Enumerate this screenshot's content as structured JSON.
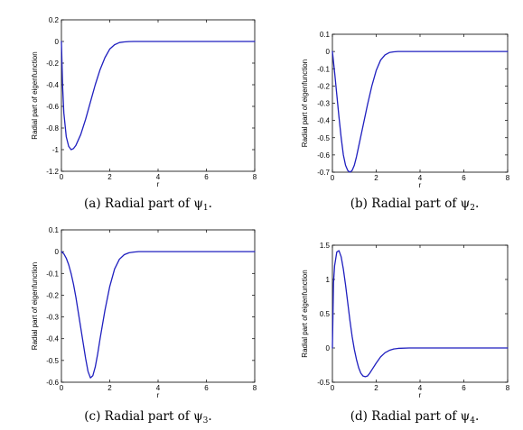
{
  "chart_data": [
    {
      "type": "line",
      "xlabel": "r",
      "ylabel": "Radial part of eigenfunction",
      "xlim": [
        0,
        8
      ],
      "ylim": [
        -1.2,
        0.2
      ],
      "xticks": [
        "0",
        "2",
        "4",
        "6",
        "8"
      ],
      "yticks": [
        "0.2",
        "0",
        "-0.2",
        "-0.4",
        "-0.6",
        "-0.8",
        "-1",
        "-1.2"
      ],
      "caption": {
        "prefix": "(a) Radial part of ψ",
        "sub": "1",
        "suffix": "."
      },
      "line_color": "#1f1fbf",
      "x": [
        0,
        0.05,
        0.1,
        0.2,
        0.3,
        0.4,
        0.5,
        0.6,
        0.8,
        1.0,
        1.2,
        1.4,
        1.6,
        1.8,
        2.0,
        2.2,
        2.4,
        2.6,
        2.8,
        3.0,
        4.0,
        5.0,
        6.0,
        7.0,
        8.0
      ],
      "y": [
        0,
        -0.42,
        -0.66,
        -0.88,
        -0.97,
        -1.0,
        -0.99,
        -0.96,
        -0.86,
        -0.72,
        -0.56,
        -0.4,
        -0.26,
        -0.15,
        -0.07,
        -0.03,
        -0.01,
        -0.004,
        -0.001,
        0,
        0,
        0,
        0,
        0,
        0
      ]
    },
    {
      "type": "line",
      "xlabel": "r",
      "ylabel": "Radial part of eigenfunction",
      "xlim": [
        0,
        8
      ],
      "ylim": [
        -0.7,
        0.1
      ],
      "xticks": [
        "0",
        "2",
        "4",
        "6",
        "8"
      ],
      "yticks": [
        "0.1",
        "0",
        "-0.1",
        "-0.2",
        "-0.3",
        "-0.4",
        "-0.5",
        "-0.6",
        "-0.7"
      ],
      "caption": {
        "prefix": "(b) Radial part of ψ",
        "sub": "2",
        "suffix": "."
      },
      "line_color": "#1f1fbf",
      "x": [
        0,
        0.1,
        0.2,
        0.3,
        0.4,
        0.5,
        0.6,
        0.7,
        0.8,
        0.9,
        1.0,
        1.1,
        1.2,
        1.4,
        1.6,
        1.8,
        2.0,
        2.2,
        2.4,
        2.6,
        2.8,
        3.0,
        4.0,
        5.0,
        6.0,
        7.0,
        8.0
      ],
      "y": [
        0,
        -0.12,
        -0.25,
        -0.38,
        -0.5,
        -0.6,
        -0.66,
        -0.69,
        -0.7,
        -0.69,
        -0.66,
        -0.61,
        -0.55,
        -0.43,
        -0.31,
        -0.2,
        -0.11,
        -0.05,
        -0.02,
        -0.006,
        -0.002,
        0,
        0,
        0,
        0,
        0,
        0
      ]
    },
    {
      "type": "line",
      "xlabel": "r",
      "ylabel": "Radial part of eigenfunction",
      "xlim": [
        0,
        8
      ],
      "ylim": [
        -0.6,
        0.1
      ],
      "xticks": [
        "0",
        "2",
        "4",
        "6",
        "8"
      ],
      "yticks": [
        "0.1",
        "0",
        "-0.1",
        "-0.2",
        "-0.3",
        "-0.4",
        "-0.5",
        "-0.6"
      ],
      "caption": {
        "prefix": "(c) Radial part of ψ",
        "sub": "3",
        "suffix": "."
      },
      "line_color": "#1f1fbf",
      "x": [
        0,
        0.1,
        0.2,
        0.3,
        0.4,
        0.5,
        0.6,
        0.7,
        0.8,
        0.9,
        1.0,
        1.1,
        1.2,
        1.3,
        1.4,
        1.5,
        1.6,
        1.8,
        2.0,
        2.2,
        2.4,
        2.6,
        2.8,
        3.0,
        3.2,
        4.0,
        5.0,
        6.0,
        7.0,
        8.0
      ],
      "y": [
        0,
        -0.01,
        -0.03,
        -0.06,
        -0.1,
        -0.15,
        -0.21,
        -0.28,
        -0.35,
        -0.42,
        -0.49,
        -0.55,
        -0.58,
        -0.57,
        -0.53,
        -0.47,
        -0.4,
        -0.27,
        -0.16,
        -0.08,
        -0.035,
        -0.014,
        -0.005,
        -0.002,
        0,
        0,
        0,
        0,
        0,
        0
      ]
    },
    {
      "type": "line",
      "xlabel": "r",
      "ylabel": "Radial part of eigenfunction",
      "xlim": [
        0,
        8
      ],
      "ylim": [
        -0.5,
        1.5
      ],
      "xticks": [
        "0",
        "2",
        "4",
        "6",
        "8"
      ],
      "yticks": [
        "1.5",
        "1",
        "0.5",
        "0",
        "-0.5"
      ],
      "caption": {
        "prefix": "(d) Radial part of ψ",
        "sub": "4",
        "suffix": "."
      },
      "line_color": "#1f1fbf",
      "x": [
        0,
        0.05,
        0.1,
        0.2,
        0.3,
        0.4,
        0.5,
        0.6,
        0.7,
        0.8,
        0.9,
        1.0,
        1.1,
        1.2,
        1.3,
        1.4,
        1.5,
        1.6,
        1.7,
        1.8,
        2.0,
        2.2,
        2.4,
        2.6,
        2.8,
        3.0,
        3.5,
        4.0,
        5.0,
        6.0,
        7.0,
        8.0
      ],
      "y": [
        0,
        0.95,
        1.2,
        1.4,
        1.42,
        1.33,
        1.15,
        0.92,
        0.66,
        0.4,
        0.17,
        -0.02,
        -0.17,
        -0.29,
        -0.37,
        -0.41,
        -0.42,
        -0.41,
        -0.37,
        -0.32,
        -0.22,
        -0.13,
        -0.07,
        -0.035,
        -0.015,
        -0.006,
        0,
        0,
        0,
        0,
        0,
        0
      ]
    }
  ]
}
